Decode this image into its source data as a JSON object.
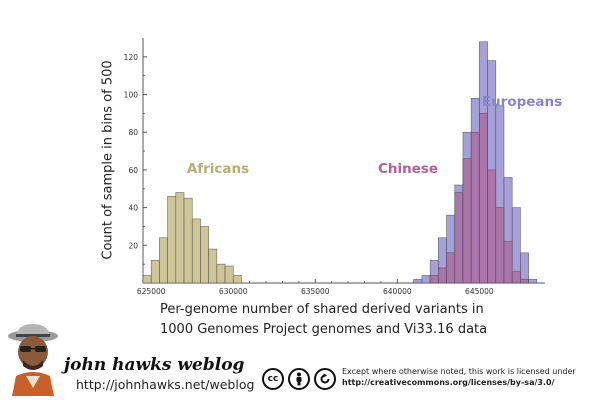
{
  "chart_data": {
    "type": "bar",
    "subtype": "overlapping histogram",
    "title": "",
    "xlabel_line1": "Per-genome number of shared derived variants in",
    "xlabel_line2": "1000 Genomes Project genomes and Vi33.16 data",
    "ylabel": "Count of sample in bins of 500",
    "xlim": [
      624500,
      649000
    ],
    "ylim": [
      0,
      130
    ],
    "x_ticks": [
      625000,
      630000,
      635000,
      640000,
      645000
    ],
    "x_tick_labels": [
      "625000",
      "630000",
      "635000",
      "640000",
      "645000"
    ],
    "y_ticks": [
      20,
      40,
      60,
      80,
      100,
      120
    ],
    "y_tick_labels": [
      "20",
      "40",
      "60",
      "80",
      "100",
      "120"
    ],
    "bin_width": 500,
    "grid": false,
    "series": [
      {
        "name": "Africans",
        "color": "#c9c08e",
        "label_color": "#b8ad72",
        "bin_starts": [
          624500,
          625000,
          625500,
          626000,
          626500,
          627000,
          627500,
          628000,
          628500,
          629000,
          629500,
          630000
        ],
        "values": [
          4,
          12,
          24,
          46,
          48,
          45,
          34,
          30,
          18,
          10,
          9,
          4
        ]
      },
      {
        "name": "Chinese",
        "color": "#a96ba0",
        "label_color": "#b85c9a",
        "bin_starts": [
          642000,
          642500,
          643000,
          643500,
          644000,
          644500,
          645000,
          645500,
          646000,
          646500,
          647000,
          647500
        ],
        "values": [
          4,
          8,
          16,
          48,
          66,
          80,
          90,
          60,
          40,
          22,
          6,
          2
        ]
      },
      {
        "name": "Europeans",
        "color": "#9b96d4",
        "label_color": "#8a85c8",
        "bin_starts": [
          641000,
          641500,
          642000,
          642500,
          643000,
          643500,
          644000,
          644500,
          645000,
          645500,
          646000,
          646500,
          647000,
          647500,
          648000
        ],
        "values": [
          2,
          4,
          12,
          24,
          36,
          52,
          80,
          98,
          128,
          118,
          94,
          56,
          40,
          16,
          2
        ]
      }
    ]
  },
  "footer": {
    "avatar_icon": "person-portrait-icon",
    "blog_title": "john hawks weblog",
    "blog_url": "http://johnhawks.net/weblog",
    "cc_icons": [
      "cc-icon",
      "attribution-icon",
      "share-alike-icon"
    ],
    "cc_text": "cc",
    "license_line1": "Except where otherwise noted, this work is licensed under",
    "license_url": "http://creativecommons.org/licenses/by-sa/3.0/"
  }
}
